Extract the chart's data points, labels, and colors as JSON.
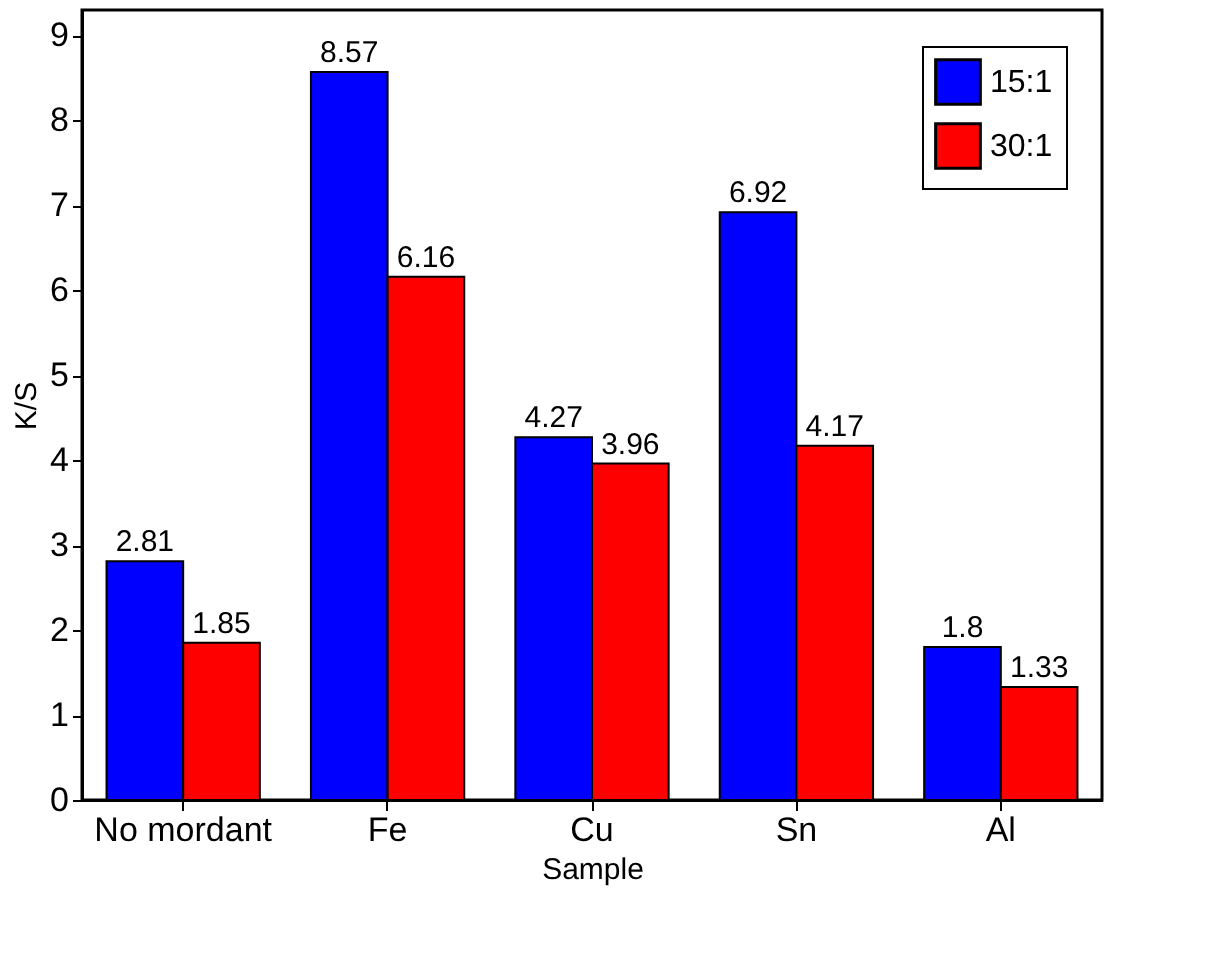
{
  "chart_data": {
    "type": "bar",
    "xlabel": "Sample",
    "ylabel": "K/S",
    "categories": [
      "No mordant",
      "Fe",
      "Cu",
      "Sn",
      "Al"
    ],
    "series": [
      {
        "name": "15:1",
        "color": "#0000ff",
        "values": [
          2.81,
          8.57,
          4.27,
          6.92,
          1.8
        ]
      },
      {
        "name": "30:1",
        "color": "#ff0000",
        "values": [
          1.85,
          6.16,
          3.96,
          4.17,
          1.33
        ]
      }
    ],
    "ylim": [
      0,
      9.3
    ],
    "yticks": [
      0,
      1,
      2,
      3,
      4,
      5,
      6,
      7,
      8,
      9
    ],
    "data_labels": true,
    "grid": false,
    "legend": "top right"
  }
}
